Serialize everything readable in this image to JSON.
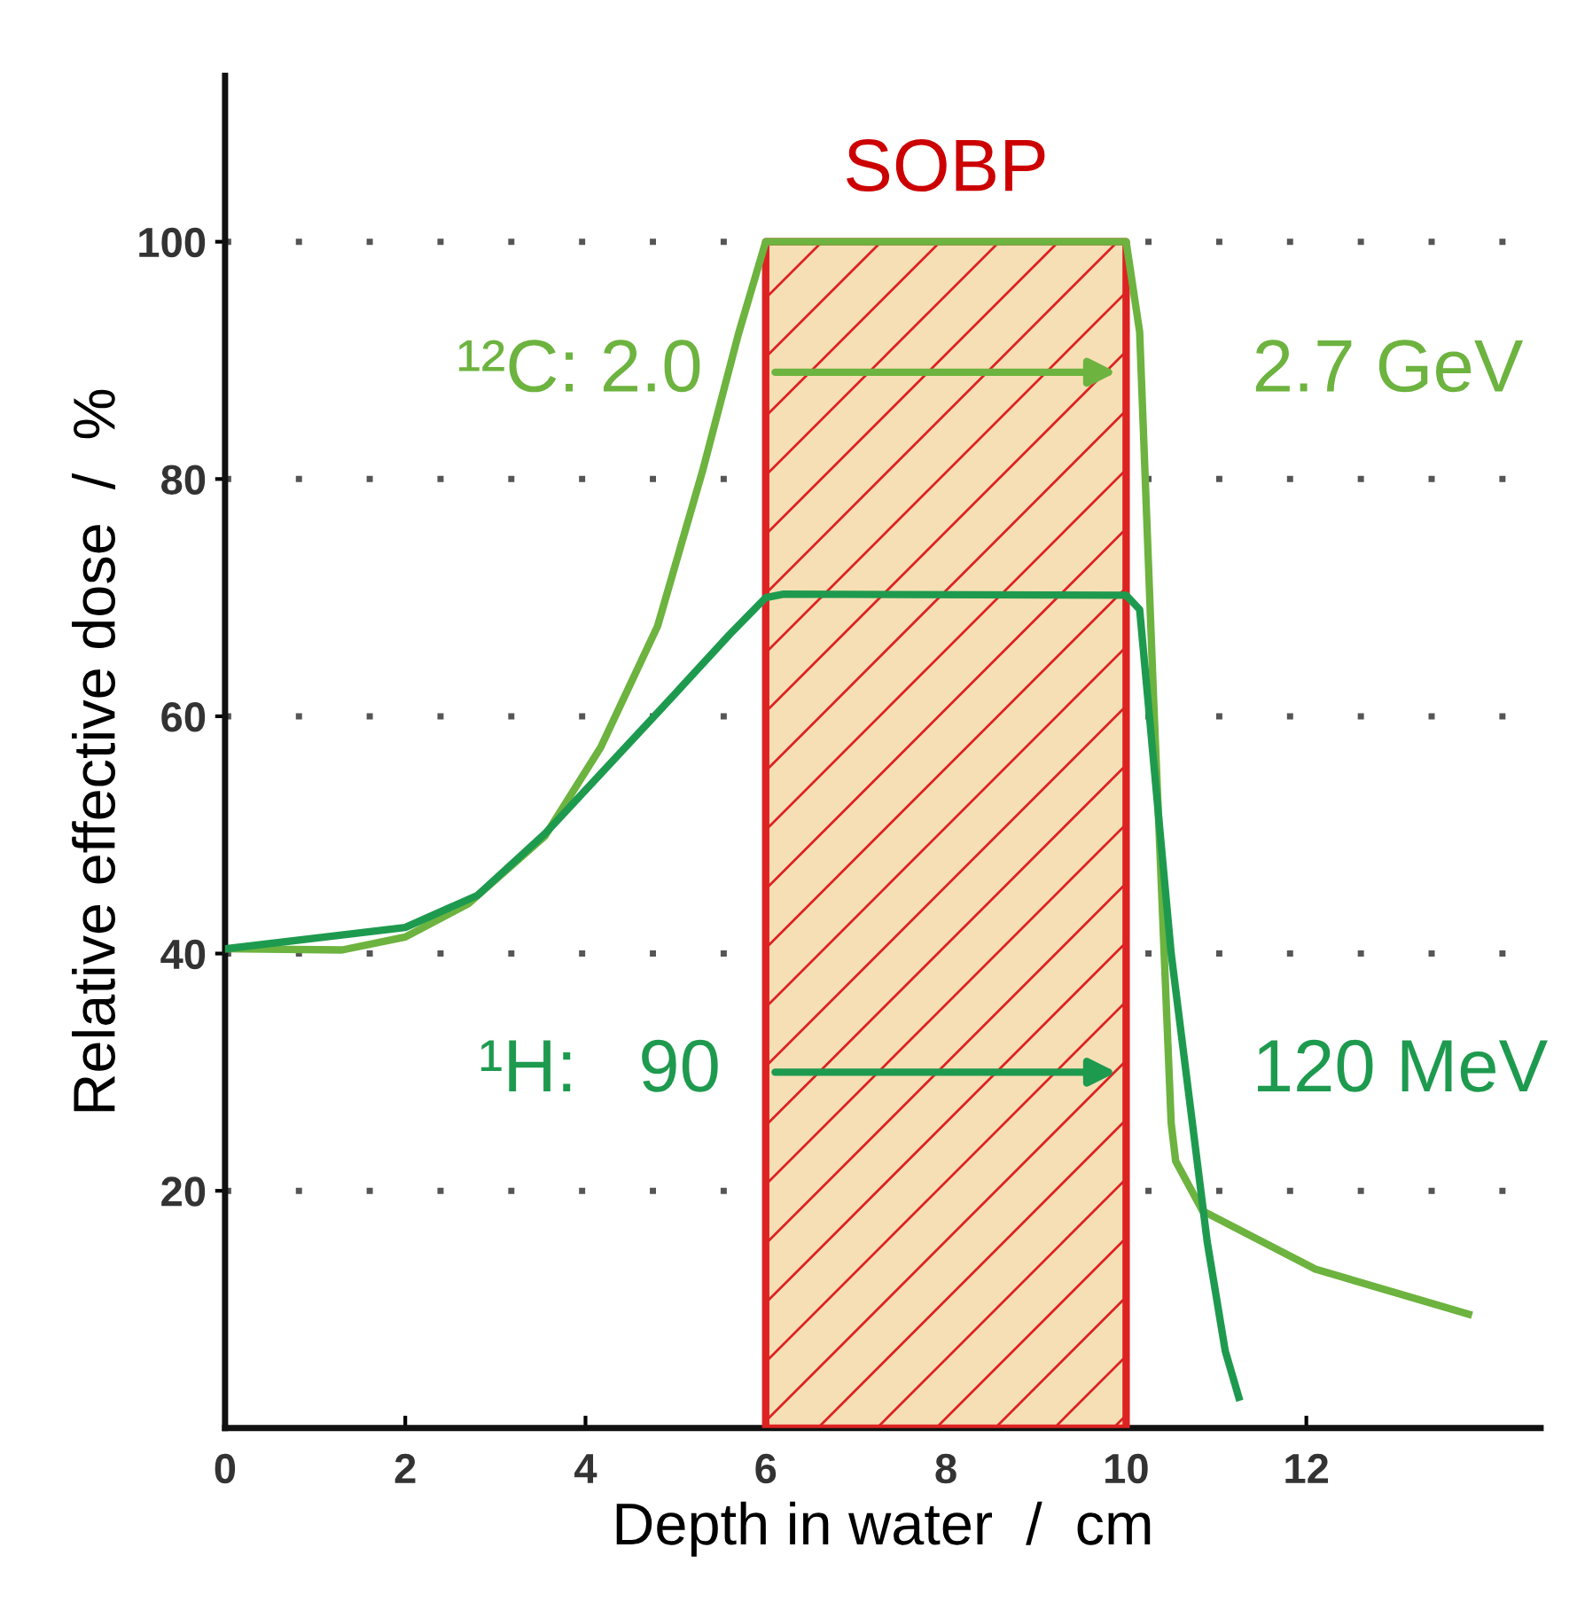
{
  "chart_data": {
    "type": "line",
    "xlabel": "Depth in water  /  cm",
    "ylabel": "Relative effective dose  /  %",
    "xlim": [
      0,
      14.6
    ],
    "ylim": [
      0,
      114
    ],
    "xticks": [
      0,
      2,
      4,
      6,
      8,
      10,
      12
    ],
    "yticks": [
      20,
      40,
      60,
      80,
      100
    ],
    "grid": "y",
    "marker": "none",
    "line_style": "solid",
    "legend": false,
    "series": [
      {
        "color": "#6db33f",
        "x": [
          0,
          1.3,
          2,
          2.7,
          3.55,
          4.17,
          4.8,
          5.3,
          5.7,
          6,
          10,
          10.15,
          10.3,
          10.5,
          10.55,
          10.85,
          12.1,
          13.8
        ],
        "values": [
          40.4,
          40.3,
          41.4,
          44.2,
          49.9,
          57.4,
          67.6,
          80.7,
          92.3,
          100,
          100,
          92.4,
          62.4,
          25.7,
          22.5,
          18.3,
          13.4,
          9.6
        ]
      },
      {
        "color": "#1e9a4f",
        "x": [
          0,
          2,
          2.8,
          3.55,
          4.8,
          5.6,
          6,
          6.2,
          10,
          10.15,
          10.5,
          10.9,
          11.1,
          11.25
        ],
        "values": [
          40.4,
          42.2,
          44.9,
          50.1,
          60.3,
          66.9,
          70,
          70.3,
          70.2,
          69,
          40,
          15.7,
          6.5,
          2.6
        ]
      }
    ],
    "bands": [
      {
        "axis": "x",
        "from": 6,
        "to": 10,
        "label": "SOBP",
        "color": "#f7dfb5"
      }
    ],
    "annotations": [
      "¹²C: 2.0",
      "2.7 GeV",
      "¹H:   90",
      "120 MeV"
    ]
  }
}
